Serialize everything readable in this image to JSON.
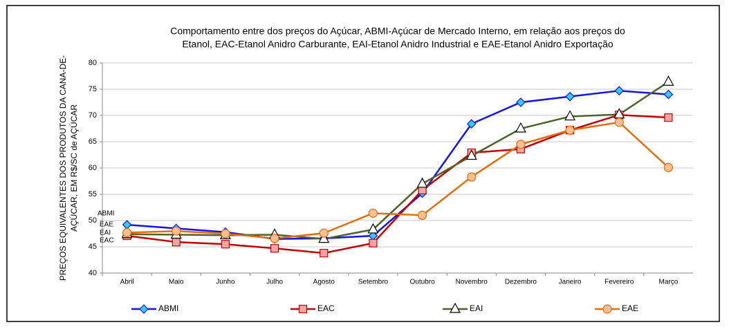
{
  "chart_data": {
    "type": "line",
    "title": [
      "Comportamento entre dos preços do Açúcar,  ABMI-Açúcar de Mercado Interno, em relação aos preços do",
      "Etanol, EAC-Etanol Anidro Carburante, EAI-Etanol Anidro Industrial e EAE-Etanol Anidro Exportação"
    ],
    "y_label": [
      "PREÇOS EQUIVALENTES DOS PRODUTOS DA CANA-DE-",
      "AÇÚCAR, EM R$/SC de AÇÚCAR"
    ],
    "categories": [
      "Abril",
      "Maio",
      "Junho",
      "Julho",
      "Agosto",
      "Setembro",
      "Outubro",
      "Novembro",
      "Dezembro",
      "Janeiro",
      "Fevereiro",
      "Março"
    ],
    "series": [
      {
        "name": "ABMI",
        "color": "#1414e6",
        "marker": "diamond",
        "marker_fill": "#33ccff",
        "values": [
          49.2,
          48.5,
          47.8,
          46.5,
          46.6,
          47.1,
          55.2,
          68.4,
          72.5,
          73.6,
          74.7,
          74.0
        ]
      },
      {
        "name": "EAC",
        "color": "#c00000",
        "marker": "square",
        "marker_fill": "#f4a6a6",
        "values": [
          47.1,
          45.9,
          45.5,
          44.7,
          43.8,
          45.7,
          55.8,
          62.9,
          63.6,
          67.2,
          70.1,
          69.6
        ]
      },
      {
        "name": "EAI",
        "color": "#4f6228",
        "marker": "triangle",
        "marker_fill": "#ffffff",
        "values": [
          47.4,
          47.3,
          47.2,
          47.3,
          46.5,
          48.3,
          57.0,
          62.3,
          67.5,
          69.8,
          70.2,
          76.4
        ]
      },
      {
        "name": "EAE",
        "color": "#e46c0a",
        "marker": "circle",
        "marker_fill": "#fac090",
        "values": [
          47.7,
          48.0,
          47.5,
          46.6,
          47.6,
          51.4,
          51.0,
          58.3,
          64.5,
          67.2,
          68.7,
          60.1
        ]
      }
    ],
    "ylim": [
      40,
      80
    ],
    "yticks": [
      40,
      45,
      50,
      55,
      60,
      65,
      70,
      75,
      80
    ],
    "grid": true
  }
}
